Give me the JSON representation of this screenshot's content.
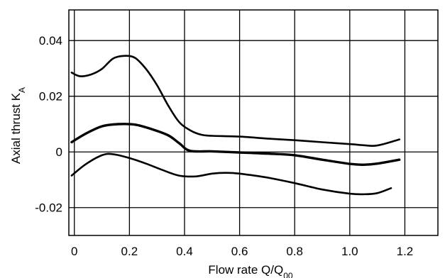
{
  "chart_data": {
    "type": "line",
    "title": "",
    "xlabel": "Flow rate Q/Q",
    "xlabel_sub": "00",
    "ylabel": "Axial thrust K",
    "ylabel_sub": "A",
    "xlim": [
      -0.02,
      1.32
    ],
    "ylim": [
      -0.03,
      0.051
    ],
    "xticks": [
      0,
      0.2,
      0.4,
      0.6,
      0.8,
      1.0,
      1.2
    ],
    "xtick_labels": [
      "0",
      "0.2",
      "0.4",
      "0.6",
      "0.8",
      "1.0",
      "1.2"
    ],
    "yticks": [
      -0.02,
      0,
      0.02,
      0.04
    ],
    "ytick_labels": [
      "-0.02",
      "0",
      "0.02",
      "0.04"
    ],
    "grid": true,
    "series": [
      {
        "line_width": 2.6,
        "x": [
          -0.01,
          0.02,
          0.06,
          0.1,
          0.14,
          0.18,
          0.22,
          0.26,
          0.3,
          0.34,
          0.38,
          0.42,
          0.46,
          0.5,
          0.6,
          0.7,
          0.8,
          0.9,
          1.0,
          1.05,
          1.09,
          1.13,
          1.18
        ],
        "y": [
          0.0285,
          0.0272,
          0.0278,
          0.0298,
          0.0335,
          0.0345,
          0.0338,
          0.0298,
          0.024,
          0.0168,
          0.0108,
          0.0078,
          0.0062,
          0.0058,
          0.0055,
          0.0048,
          0.0042,
          0.0035,
          0.0028,
          0.0024,
          0.0022,
          0.003,
          0.0045
        ]
      },
      {
        "line_width": 3.4,
        "x": [
          -0.01,
          0.04,
          0.1,
          0.16,
          0.22,
          0.28,
          0.34,
          0.38,
          0.42,
          0.5,
          0.6,
          0.7,
          0.8,
          0.9,
          1.0,
          1.05,
          1.1,
          1.18
        ],
        "y": [
          0.0035,
          0.0065,
          0.0092,
          0.01,
          0.0098,
          0.0082,
          0.006,
          0.0032,
          0.0004,
          0.0002,
          -0.0002,
          -0.0006,
          -0.0012,
          -0.0028,
          -0.0043,
          -0.0046,
          -0.0042,
          -0.0028
        ]
      },
      {
        "line_width": 2.6,
        "x": [
          -0.01,
          0.04,
          0.1,
          0.14,
          0.2,
          0.26,
          0.32,
          0.38,
          0.44,
          0.5,
          0.55,
          0.6,
          0.7,
          0.8,
          0.9,
          1.0,
          1.05,
          1.1,
          1.15
        ],
        "y": [
          -0.0085,
          -0.0045,
          -0.0012,
          -0.0008,
          -0.0022,
          -0.0042,
          -0.0065,
          -0.0085,
          -0.0088,
          -0.0078,
          -0.0075,
          -0.0078,
          -0.0092,
          -0.0112,
          -0.0135,
          -0.015,
          -0.0152,
          -0.0148,
          -0.013
        ]
      }
    ]
  }
}
